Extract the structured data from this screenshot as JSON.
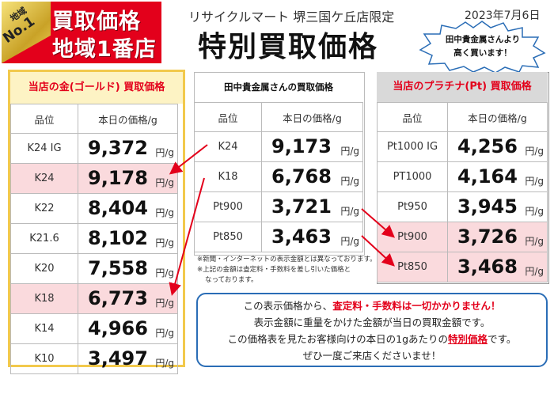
{
  "header": {
    "badge_no1_top": "地域",
    "badge_no1_bottom": "No.1",
    "badge_line1": "買取価格",
    "badge_line2": "地域1番店",
    "store_name": "リサイクルマート 堺三国ケ丘店限定",
    "date": "2023年7月6日",
    "title": "特別買取価格",
    "burst_line1": "田中貴金属さんより",
    "burst_line2": "高く買います！"
  },
  "gold_table": {
    "title": "当店の金(ゴールド) 買取価格",
    "col_grade": "品位",
    "col_price": "本日の価格/g",
    "unit": "円/g",
    "rows": [
      {
        "grade": "K24 IG",
        "price": "9,372",
        "highlight": false
      },
      {
        "grade": "K24",
        "price": "9,178",
        "highlight": true
      },
      {
        "grade": "K22",
        "price": "8,404",
        "highlight": false
      },
      {
        "grade": "K21.6",
        "price": "8,102",
        "highlight": false
      },
      {
        "grade": "K20",
        "price": "7,558",
        "highlight": false
      },
      {
        "grade": "K18",
        "price": "6,773",
        "highlight": true
      },
      {
        "grade": "K14",
        "price": "4,966",
        "highlight": false
      },
      {
        "grade": "K10",
        "price": "3,497",
        "highlight": false
      }
    ]
  },
  "tanaka_table": {
    "title": "田中貴金属さんの買取価格",
    "col_grade": "品位",
    "col_price": "本日の価格/g",
    "unit": "円/g",
    "rows": [
      {
        "grade": "K24",
        "price": "9,173"
      },
      {
        "grade": "K18",
        "price": "6,768"
      },
      {
        "grade": "Pt900",
        "price": "3,721"
      },
      {
        "grade": "Pt850",
        "price": "3,463"
      }
    ],
    "note1": "※新聞・インターネットの表示金額とは異なっております。",
    "note2": "※上記の金額は査定料・手数料を差し引いた価格と",
    "note3": "なっております。"
  },
  "platinum_table": {
    "title": "当店のプラチナ(Pt) 買取価格",
    "col_grade": "品位",
    "col_price": "本日の価格/g",
    "unit": "円/g",
    "rows": [
      {
        "grade": "Pt1000 IG",
        "price": "4,256",
        "highlight": false
      },
      {
        "grade": "PT1000",
        "price": "4,164",
        "highlight": false
      },
      {
        "grade": "Pt950",
        "price": "3,945",
        "highlight": false
      },
      {
        "grade": "Pt900",
        "price": "3,726",
        "highlight": true
      },
      {
        "grade": "Pt850",
        "price": "3,468",
        "highlight": true
      }
    ]
  },
  "info": {
    "line1_a": "この表示価格から、",
    "line1_b": "査定料・手数料は一切かかりません！",
    "line2": "表示金額に重量をかけた金額が当日の買取金額です。",
    "line3_a": "この価格表を見たお客様向けの本日の1gあたりの",
    "line3_b": "特別価格",
    "line3_c": "です。",
    "line4": "ぜひ一度ご来店くださいませ！"
  },
  "colors": {
    "accent_red": "#e3001b",
    "gold_border": "#f2c94c",
    "gold_header": "#fdf3c4",
    "platinum_header": "#d9d9d9",
    "highlight": "#fadadd",
    "info_border": "#2a6db6"
  }
}
